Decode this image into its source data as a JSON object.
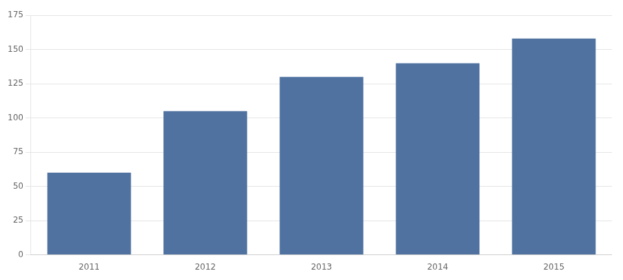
{
  "chart_data": {
    "type": "bar",
    "categories": [
      "2011",
      "2012",
      "2013",
      "2014",
      "2015"
    ],
    "values": [
      60,
      105,
      130,
      140,
      158
    ],
    "color": "#4F72A0",
    "ylim": [
      0,
      175
    ],
    "yticks": [
      0,
      25,
      50,
      75,
      100,
      125,
      150,
      175
    ],
    "grid": true
  }
}
